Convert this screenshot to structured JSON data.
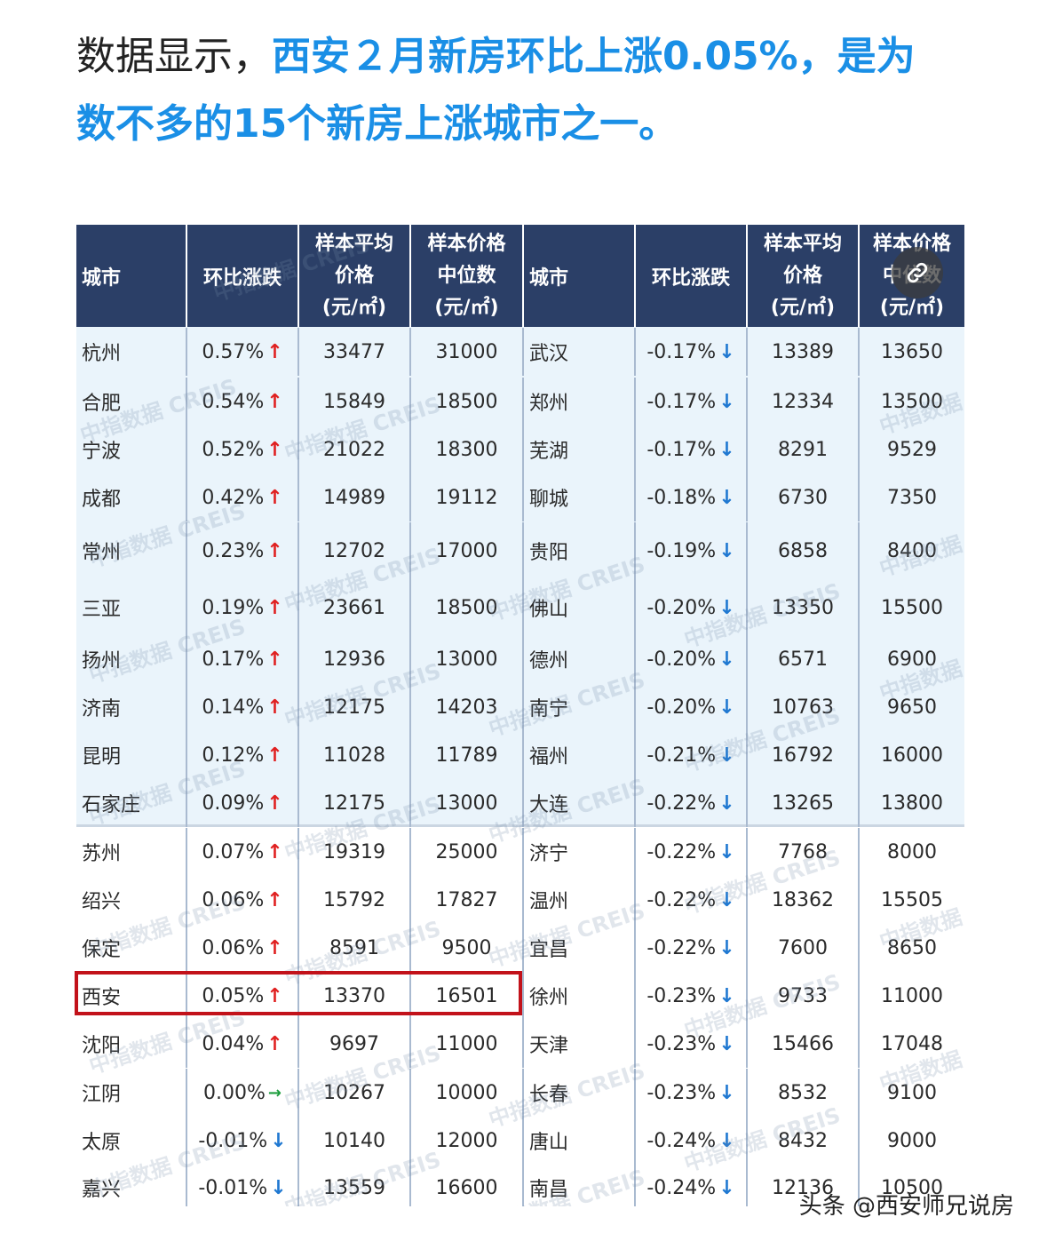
{
  "intro": {
    "prefix": "数据显示，",
    "highlight_line1": "西安２月新房环比上涨0.05%，是为",
    "highlight_line2": "数不多的15个新房上涨城市之一。"
  },
  "table": {
    "headers": {
      "city": "城市",
      "change": "环比涨跌",
      "avg_line1": "样本平均",
      "avg_line2": "价格",
      "avg_unit": "(元/㎡)",
      "median_line1": "样本价格",
      "median_line2": "中位数",
      "median_unit": "(元/㎡)"
    },
    "rows": [
      {
        "l_city": "杭州",
        "l_chg": "0.57%",
        "l_dir": "up",
        "l_avg": "33477",
        "l_med": "31000",
        "r_city": "武汉",
        "r_chg": "-0.17%",
        "r_dir": "down",
        "r_avg": "13389",
        "r_med": "13650"
      },
      {
        "l_city": "合肥",
        "l_chg": "0.54%",
        "l_dir": "up",
        "l_avg": "15849",
        "l_med": "18500",
        "r_city": "郑州",
        "r_chg": "-0.17%",
        "r_dir": "down",
        "r_avg": "12334",
        "r_med": "13500"
      },
      {
        "l_city": "宁波",
        "l_chg": "0.52%",
        "l_dir": "up",
        "l_avg": "21022",
        "l_med": "18300",
        "r_city": "芜湖",
        "r_chg": "-0.17%",
        "r_dir": "down",
        "r_avg": "8291",
        "r_med": "9529"
      },
      {
        "l_city": "成都",
        "l_chg": "0.42%",
        "l_dir": "up",
        "l_avg": "14989",
        "l_med": "19112",
        "r_city": "聊城",
        "r_chg": "-0.18%",
        "r_dir": "down",
        "r_avg": "6730",
        "r_med": "7350"
      },
      {
        "l_city": "常州",
        "l_chg": "0.23%",
        "l_dir": "up",
        "l_avg": "12702",
        "l_med": "17000",
        "r_city": "贵阳",
        "r_chg": "-0.19%",
        "r_dir": "down",
        "r_avg": "6858",
        "r_med": "8400"
      },
      {
        "l_city": "三亚",
        "l_chg": "0.19%",
        "l_dir": "up",
        "l_avg": "23661",
        "l_med": "18500",
        "r_city": "佛山",
        "r_chg": "-0.20%",
        "r_dir": "down",
        "r_avg": "13350",
        "r_med": "15500"
      },
      {
        "l_city": "扬州",
        "l_chg": "0.17%",
        "l_dir": "up",
        "l_avg": "12936",
        "l_med": "13000",
        "r_city": "德州",
        "r_chg": "-0.20%",
        "r_dir": "down",
        "r_avg": "6571",
        "r_med": "6900"
      },
      {
        "l_city": "济南",
        "l_chg": "0.14%",
        "l_dir": "up",
        "l_avg": "12175",
        "l_med": "14203",
        "r_city": "南宁",
        "r_chg": "-0.20%",
        "r_dir": "down",
        "r_avg": "10763",
        "r_med": "9650"
      },
      {
        "l_city": "昆明",
        "l_chg": "0.12%",
        "l_dir": "up",
        "l_avg": "11028",
        "l_med": "11789",
        "r_city": "福州",
        "r_chg": "-0.21%",
        "r_dir": "down",
        "r_avg": "16792",
        "r_med": "16000"
      },
      {
        "l_city": "石家庄",
        "l_chg": "0.09%",
        "l_dir": "up",
        "l_avg": "12175",
        "l_med": "13000",
        "r_city": "大连",
        "r_chg": "-0.22%",
        "r_dir": "down",
        "r_avg": "13265",
        "r_med": "13800"
      },
      {
        "l_city": "苏州",
        "l_chg": "0.07%",
        "l_dir": "up",
        "l_avg": "19319",
        "l_med": "25000",
        "r_city": "济宁",
        "r_chg": "-0.22%",
        "r_dir": "down",
        "r_avg": "7768",
        "r_med": "8000"
      },
      {
        "l_city": "绍兴",
        "l_chg": "0.06%",
        "l_dir": "up",
        "l_avg": "15792",
        "l_med": "17827",
        "r_city": "温州",
        "r_chg": "-0.22%",
        "r_dir": "down",
        "r_avg": "18362",
        "r_med": "15505"
      },
      {
        "l_city": "保定",
        "l_chg": "0.06%",
        "l_dir": "up",
        "l_avg": "8591",
        "l_med": "9500",
        "r_city": "宜昌",
        "r_chg": "-0.22%",
        "r_dir": "down",
        "r_avg": "7600",
        "r_med": "8650"
      },
      {
        "l_city": "西安",
        "l_chg": "0.05%",
        "l_dir": "up",
        "l_avg": "13370",
        "l_med": "16501",
        "r_city": "徐州",
        "r_chg": "-0.23%",
        "r_dir": "down",
        "r_avg": "9733",
        "r_med": "11000"
      },
      {
        "l_city": "沈阳",
        "l_chg": "0.04%",
        "l_dir": "up",
        "l_avg": "9697",
        "l_med": "11000",
        "r_city": "天津",
        "r_chg": "-0.23%",
        "r_dir": "down",
        "r_avg": "15466",
        "r_med": "17048"
      },
      {
        "l_city": "江阴",
        "l_chg": "0.00%",
        "l_dir": "flat",
        "l_avg": "10267",
        "l_med": "10000",
        "r_city": "长春",
        "r_chg": "-0.23%",
        "r_dir": "down",
        "r_avg": "8532",
        "r_med": "9100"
      },
      {
        "l_city": "太原",
        "l_chg": "-0.01%",
        "l_dir": "down",
        "l_avg": "10140",
        "l_med": "12000",
        "r_city": "唐山",
        "r_chg": "-0.24%",
        "r_dir": "down",
        "r_avg": "8432",
        "r_med": "9000"
      },
      {
        "l_city": "嘉兴",
        "l_chg": "-0.01%",
        "l_dir": "down",
        "l_avg": "13559",
        "l_med": "16600",
        "r_city": "南昌",
        "r_chg": "-0.24%",
        "r_dir": "down",
        "r_avg": "12136",
        "r_med": "10500"
      }
    ],
    "watermark_text": "中指数据 CREIS",
    "arrows": {
      "up": "↑",
      "down": "↓",
      "flat": "→"
    },
    "colors": {
      "header_bg": "#2b3f67",
      "up": "#e02020",
      "down": "#1f78d1",
      "flat": "#1e9e3e",
      "highlight_border": "#c2121a"
    }
  },
  "footer": {
    "source": "头条 @西安师兄说房"
  }
}
